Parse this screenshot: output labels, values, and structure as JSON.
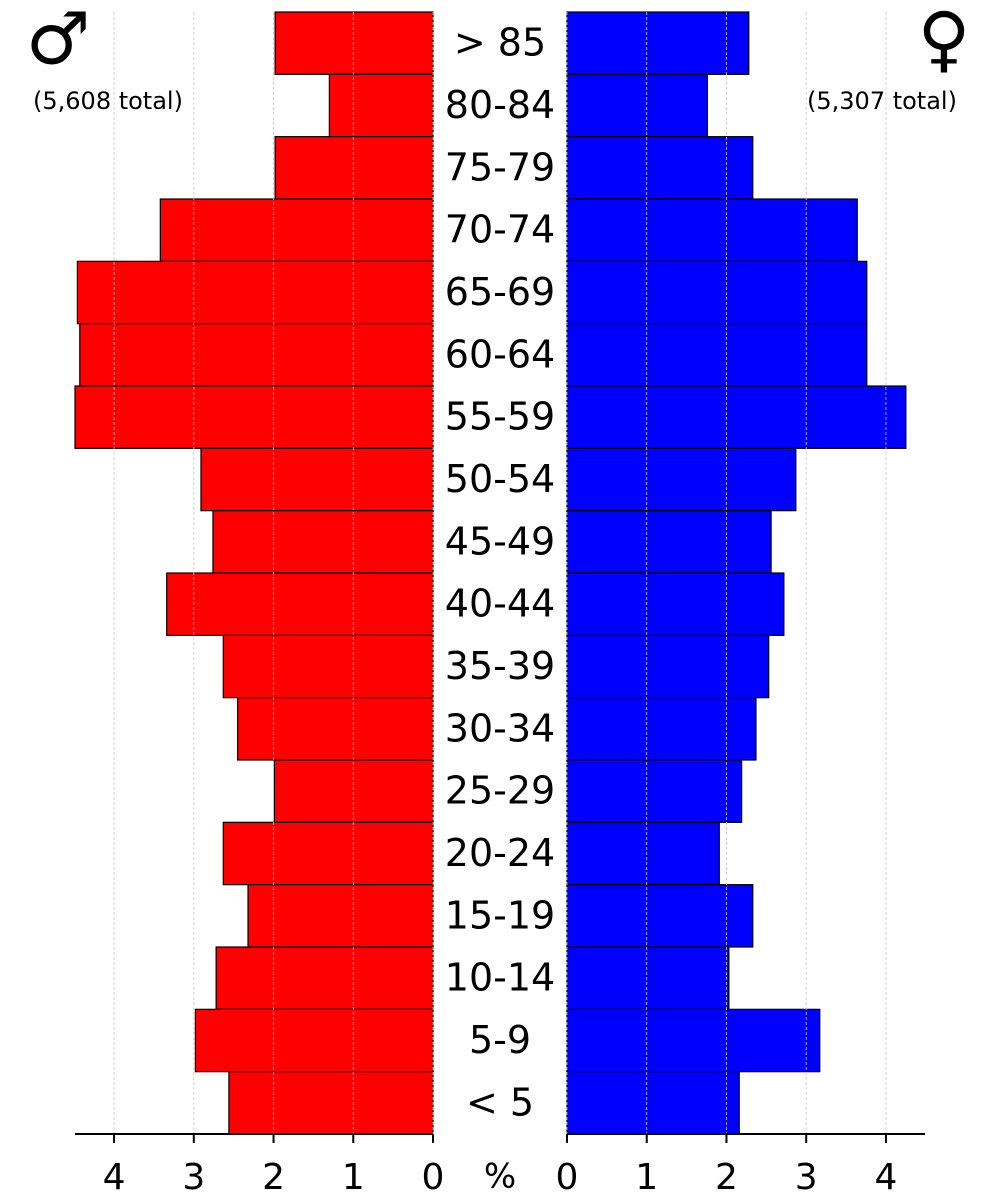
{
  "chart_data": {
    "type": "population-pyramid",
    "categories": [
      "> 85",
      "80-84",
      "75-79",
      "70-74",
      "65-69",
      "60-64",
      "55-59",
      "50-54",
      "45-49",
      "40-44",
      "35-39",
      "30-34",
      "25-29",
      "20-24",
      "15-19",
      "10-14",
      "5-9",
      "< 5"
    ],
    "series": [
      {
        "name": "♂",
        "total_label": "(5,608 total)",
        "color": "#ff0000",
        "side": "left",
        "values": [
          1.98,
          1.3,
          1.98,
          3.42,
          4.46,
          4.43,
          4.49,
          2.91,
          2.76,
          3.34,
          2.63,
          2.45,
          1.99,
          2.63,
          2.32,
          2.72,
          2.98,
          2.56
        ]
      },
      {
        "name": "♀",
        "total_label": "(5,307 total)",
        "color": "#0000ff",
        "side": "right",
        "values": [
          2.28,
          1.76,
          2.33,
          3.64,
          3.76,
          3.76,
          4.25,
          2.87,
          2.56,
          2.72,
          2.53,
          2.37,
          2.19,
          1.91,
          2.33,
          2.03,
          3.17,
          2.16
        ]
      }
    ],
    "x_label": "%",
    "xlim": [
      0,
      4.49
    ],
    "xticks": [
      0,
      1,
      2,
      3,
      4
    ],
    "grid": true
  }
}
